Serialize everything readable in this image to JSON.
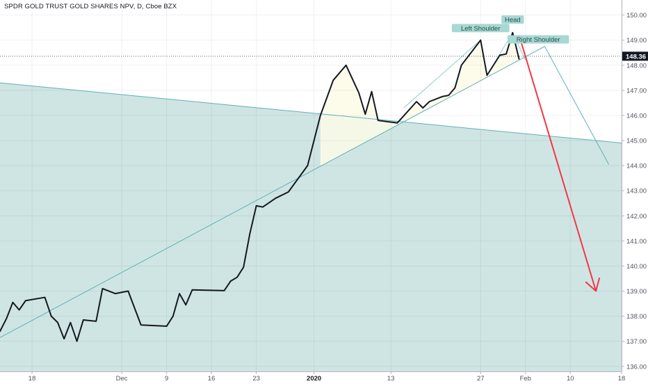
{
  "chart_data": {
    "type": "line",
    "title": "SPDR GOLD TRUST GOLD SHARES NPV, D, Cboe BZX",
    "y_axis": {
      "side": "right",
      "range": [
        135.8,
        150.6
      ],
      "ticks": [
        136,
        137,
        138,
        139,
        140,
        141,
        142,
        143,
        144,
        145,
        146,
        147,
        148,
        149,
        150
      ],
      "tick_labels": [
        "136.00",
        "137.00",
        "138.00",
        "139.00",
        "140.00",
        "141.00",
        "142.00",
        "143.00",
        "144.00",
        "145.00",
        "146.00",
        "147.00",
        "148.00",
        "149.00",
        "150.00"
      ]
    },
    "x_axis": {
      "range": [
        "2019-11-13",
        "2020-02-18"
      ],
      "ticks": [
        {
          "date": "2019-11-18",
          "label": "18",
          "bold": false
        },
        {
          "date": "2019-12-02",
          "label": "Dec",
          "bold": false
        },
        {
          "date": "2019-12-09",
          "label": "9",
          "bold": false
        },
        {
          "date": "2019-12-16",
          "label": "16",
          "bold": false
        },
        {
          "date": "2019-12-23",
          "label": "23",
          "bold": false
        },
        {
          "date": "2020-01-01",
          "label": "2020",
          "bold": true
        },
        {
          "date": "2020-01-13",
          "label": "13",
          "bold": false
        },
        {
          "date": "2020-01-27",
          "label": "27",
          "bold": false
        },
        {
          "date": "2020-02-03",
          "label": "Feb",
          "bold": false
        },
        {
          "date": "2020-02-10",
          "label": "10",
          "bold": false
        },
        {
          "date": "2020-02-18",
          "label": "18",
          "bold": false
        }
      ]
    },
    "last_price": {
      "value": 148.36,
      "label": "148.36",
      "color": "#131722"
    },
    "series": [
      {
        "color": "#131722",
        "points": [
          {
            "x": "2019-11-13",
            "y": 137.4
          },
          {
            "x": "2019-11-14",
            "y": 137.9
          },
          {
            "x": "2019-11-15",
            "y": 138.55
          },
          {
            "x": "2019-11-16",
            "y": 138.25
          },
          {
            "x": "2019-11-17",
            "y": 138.62
          },
          {
            "x": "2019-11-20",
            "y": 138.75
          },
          {
            "x": "2019-11-21",
            "y": 138.0
          },
          {
            "x": "2019-11-22",
            "y": 137.75
          },
          {
            "x": "2019-11-23",
            "y": 137.1
          },
          {
            "x": "2019-11-24",
            "y": 137.75
          },
          {
            "x": "2019-11-25",
            "y": 137.0
          },
          {
            "x": "2019-11-26",
            "y": 137.85
          },
          {
            "x": "2019-11-28",
            "y": 137.8
          },
          {
            "x": "2019-11-29",
            "y": 139.1
          },
          {
            "x": "2019-12-01",
            "y": 138.9
          },
          {
            "x": "2019-12-03",
            "y": 139.0
          },
          {
            "x": "2019-12-05",
            "y": 137.65
          },
          {
            "x": "2019-12-09",
            "y": 137.6
          },
          {
            "x": "2019-12-10",
            "y": 138.0
          },
          {
            "x": "2019-12-11",
            "y": 138.9
          },
          {
            "x": "2019-12-12",
            "y": 138.45
          },
          {
            "x": "2019-12-13",
            "y": 139.05
          },
          {
            "x": "2019-12-18",
            "y": 139.02
          },
          {
            "x": "2019-12-19",
            "y": 139.4
          },
          {
            "x": "2019-12-20",
            "y": 139.55
          },
          {
            "x": "2019-12-21",
            "y": 139.95
          },
          {
            "x": "2019-12-22",
            "y": 141.3
          },
          {
            "x": "2019-12-23",
            "y": 142.4
          },
          {
            "x": "2019-12-24",
            "y": 142.35
          },
          {
            "x": "2019-12-26",
            "y": 142.7
          },
          {
            "x": "2019-12-28",
            "y": 142.95
          },
          {
            "x": "2019-12-31",
            "y": 144.0
          },
          {
            "x": "2020-01-02",
            "y": 146.0
          },
          {
            "x": "2020-01-04",
            "y": 147.4
          },
          {
            "x": "2020-01-06",
            "y": 148.0
          },
          {
            "x": "2020-01-08",
            "y": 146.9
          },
          {
            "x": "2020-01-09",
            "y": 146.05
          },
          {
            "x": "2020-01-10",
            "y": 146.95
          },
          {
            "x": "2020-01-11",
            "y": 145.8
          },
          {
            "x": "2020-01-14",
            "y": 145.7
          },
          {
            "x": "2020-01-17",
            "y": 146.55
          },
          {
            "x": "2020-01-18",
            "y": 146.3
          },
          {
            "x": "2020-01-19",
            "y": 146.55
          },
          {
            "x": "2020-01-21",
            "y": 146.75
          },
          {
            "x": "2020-01-22",
            "y": 146.8
          },
          {
            "x": "2020-01-23",
            "y": 147.1
          },
          {
            "x": "2020-01-24",
            "y": 148.0
          },
          {
            "x": "2020-01-27",
            "y": 149.0
          },
          {
            "x": "2020-01-28",
            "y": 147.6
          },
          {
            "x": "2020-01-30",
            "y": 148.4
          },
          {
            "x": "2020-01-31",
            "y": 148.45
          },
          {
            "x": "2020-02-01",
            "y": 149.3
          },
          {
            "x": "2020-02-02",
            "y": 148.25
          }
        ]
      }
    ],
    "drawings": {
      "channel_upper": {
        "from": {
          "x": "2019-11-13",
          "y": 147.3
        },
        "to": {
          "x": "2020-02-18",
          "y": 144.9
        },
        "color": "#5fb0b7"
      },
      "neckline": {
        "from": {
          "x": "2019-11-13",
          "y": 137.15
        },
        "to": {
          "x": "2020-02-06",
          "y": 148.75
        },
        "color": "#5fb0b7"
      },
      "projection_line": {
        "points": [
          {
            "x": "2020-02-06",
            "y": 148.75
          },
          {
            "x": "2020-02-16",
            "y": 144.05
          }
        ],
        "color": "#5fb0b7"
      },
      "pattern_lines": [
        {
          "points": [
            {
              "x": "2020-01-15",
              "y": 146.3
            },
            {
              "x": "2020-01-27",
              "y": 149.0
            }
          ]
        },
        {
          "points": [
            {
              "x": "2020-01-28",
              "y": 147.6
            },
            {
              "x": "2020-02-01",
              "y": 149.3
            }
          ]
        },
        {
          "points": [
            {
              "x": "2020-02-01",
              "y": 149.3
            },
            {
              "x": "2020-02-03",
              "y": 148.2
            }
          ]
        }
      ],
      "fill_color": "#cfe5e3",
      "pattern_fill": "#fdfbe7",
      "forecast_arrow": {
        "from": {
          "x": "2020-02-02",
          "y": 149.2
        },
        "to": {
          "x": "2020-02-14",
          "y": 139.0
        },
        "color": "#f23645"
      },
      "labels": [
        {
          "text": "Left Shoulder",
          "x": "2020-01-27",
          "y": 149.48
        },
        {
          "text": "Head",
          "x": "2020-02-01",
          "y": 149.82
        },
        {
          "text": "Right Shoulder",
          "x": "2020-02-05",
          "y": 149.03
        }
      ],
      "label_bg": "#a7d8d3"
    }
  }
}
